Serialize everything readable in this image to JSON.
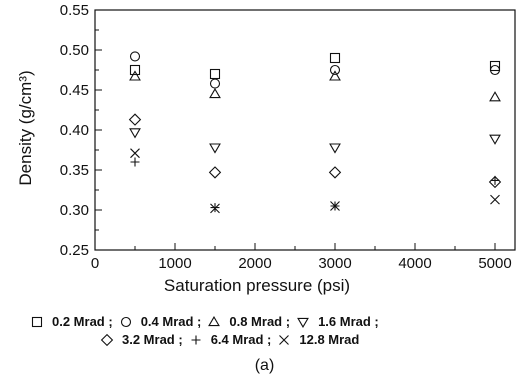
{
  "chart_data": {
    "type": "scatter",
    "xlabel": "Saturation pressure (psi)",
    "ylabel": "Density (g/cm³)",
    "xlim": [
      0,
      5250
    ],
    "ylim": [
      0.25,
      0.55
    ],
    "xticks": [
      0,
      1000,
      2000,
      3000,
      4000,
      5000
    ],
    "yticks": [
      0.25,
      0.3,
      0.35,
      0.4,
      0.45,
      0.5,
      0.55
    ],
    "ytick_labels": [
      "0.25",
      "0.30",
      "0.35",
      "0.40",
      "0.45",
      "0.50",
      "0.55"
    ],
    "grid": false,
    "legend_position": "bottom",
    "series": [
      {
        "name": "0.2 Mrad",
        "marker": "square",
        "x": [
          500,
          1500,
          3000,
          5000
        ],
        "y": [
          0.475,
          0.47,
          0.49,
          0.48
        ]
      },
      {
        "name": "0.4 Mrad",
        "marker": "circle",
        "x": [
          500,
          1500,
          3000,
          5000
        ],
        "y": [
          0.492,
          0.458,
          0.475,
          0.475
        ]
      },
      {
        "name": "0.8 Mrad",
        "marker": "triangle-up",
        "x": [
          500,
          1500,
          3000,
          5000
        ],
        "y": [
          0.467,
          0.445,
          0.467,
          0.441
        ]
      },
      {
        "name": "1.6 Mrad",
        "marker": "triangle-down",
        "x": [
          500,
          1500,
          3000,
          5000
        ],
        "y": [
          0.397,
          0.378,
          0.378,
          0.389
        ]
      },
      {
        "name": "3.2 Mrad",
        "marker": "diamond",
        "x": [
          500,
          1500,
          3000,
          5000
        ],
        "y": [
          0.413,
          0.347,
          0.347,
          0.335
        ]
      },
      {
        "name": "6.4 Mrad",
        "marker": "plus",
        "x": [
          500,
          1500,
          3000,
          5000
        ],
        "y": [
          0.36,
          0.303,
          0.305,
          0.337
        ]
      },
      {
        "name": "12.8 Mrad",
        "marker": "x",
        "x": [
          500,
          1500,
          3000,
          5000
        ],
        "y": [
          0.371,
          0.302,
          0.305,
          0.313
        ]
      }
    ]
  },
  "legend": {
    "row1": [
      {
        "marker": "square",
        "label": "0.2 Mrad ;"
      },
      {
        "marker": "circle",
        "label": "0.4 Mrad ;"
      },
      {
        "marker": "triangle-up",
        "label": "0.8 Mrad ;"
      },
      {
        "marker": "triangle-down",
        "label": "1.6 Mrad ;"
      }
    ],
    "row2": [
      {
        "marker": "diamond",
        "label": "3.2 Mrad ;"
      },
      {
        "marker": "plus",
        "label": "6.4 Mrad ;"
      },
      {
        "marker": "x",
        "label": "12.8 Mrad"
      }
    ]
  },
  "caption": "(a)"
}
